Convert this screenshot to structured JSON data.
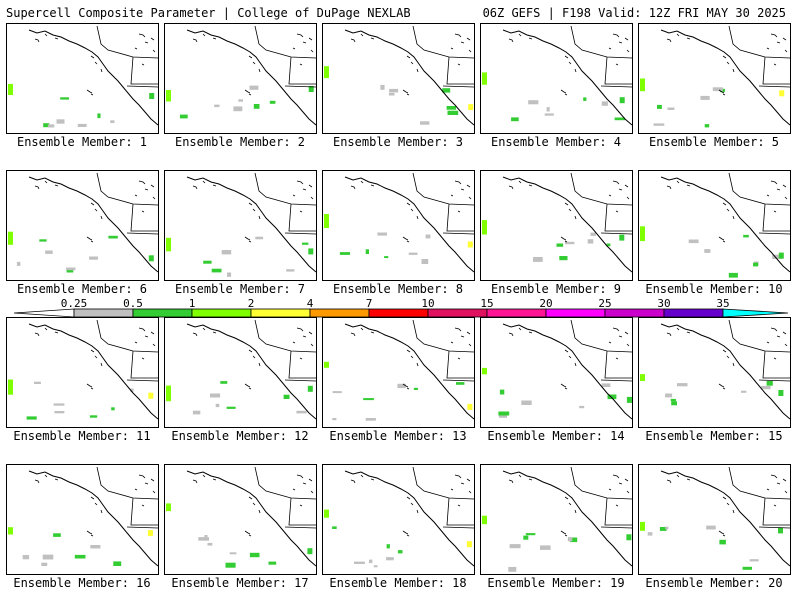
{
  "header": {
    "left_title": "Supercell Composite Parameter | College of DuPage NEXLAB",
    "right_title": "06Z GEFS | F198 Valid: 12Z FRI MAY 30 2025"
  },
  "members": [
    {
      "label": "Ensemble Member: 1"
    },
    {
      "label": "Ensemble Member: 2"
    },
    {
      "label": "Ensemble Member: 3"
    },
    {
      "label": "Ensemble Member: 4"
    },
    {
      "label": "Ensemble Member: 5"
    },
    {
      "label": "Ensemble Member: 6"
    },
    {
      "label": "Ensemble Member: 7"
    },
    {
      "label": "Ensemble Member: 8"
    },
    {
      "label": "Ensemble Member: 9"
    },
    {
      "label": "Ensemble Member: 10"
    },
    {
      "label": "Ensemble Member: 11"
    },
    {
      "label": "Ensemble Member: 12"
    },
    {
      "label": "Ensemble Member: 13"
    },
    {
      "label": "Ensemble Member: 14"
    },
    {
      "label": "Ensemble Member: 15"
    },
    {
      "label": "Ensemble Member: 16"
    },
    {
      "label": "Ensemble Member: 17"
    },
    {
      "label": "Ensemble Member: 18"
    },
    {
      "label": "Ensemble Member: 19"
    },
    {
      "label": "Ensemble Member: 20"
    }
  ],
  "colorbar": {
    "ticks": [
      "0.25",
      "0.5",
      "1",
      "2",
      "4",
      "7",
      "10",
      "15",
      "20",
      "25",
      "30",
      "35"
    ],
    "colors": [
      "#c0c0c0",
      "#33cc33",
      "#7fff00",
      "#ffff33",
      "#ff9900",
      "#ff0000",
      "#e0115f",
      "#ff1493",
      "#ff00ff",
      "#cc00cc",
      "#6600cc",
      "#9966cc",
      "#00ffff"
    ]
  },
  "legend_colors": {
    "low": "#c0c0c0",
    "green": "#33cc33",
    "lime": "#7fff00",
    "yellow": "#ffff33"
  }
}
